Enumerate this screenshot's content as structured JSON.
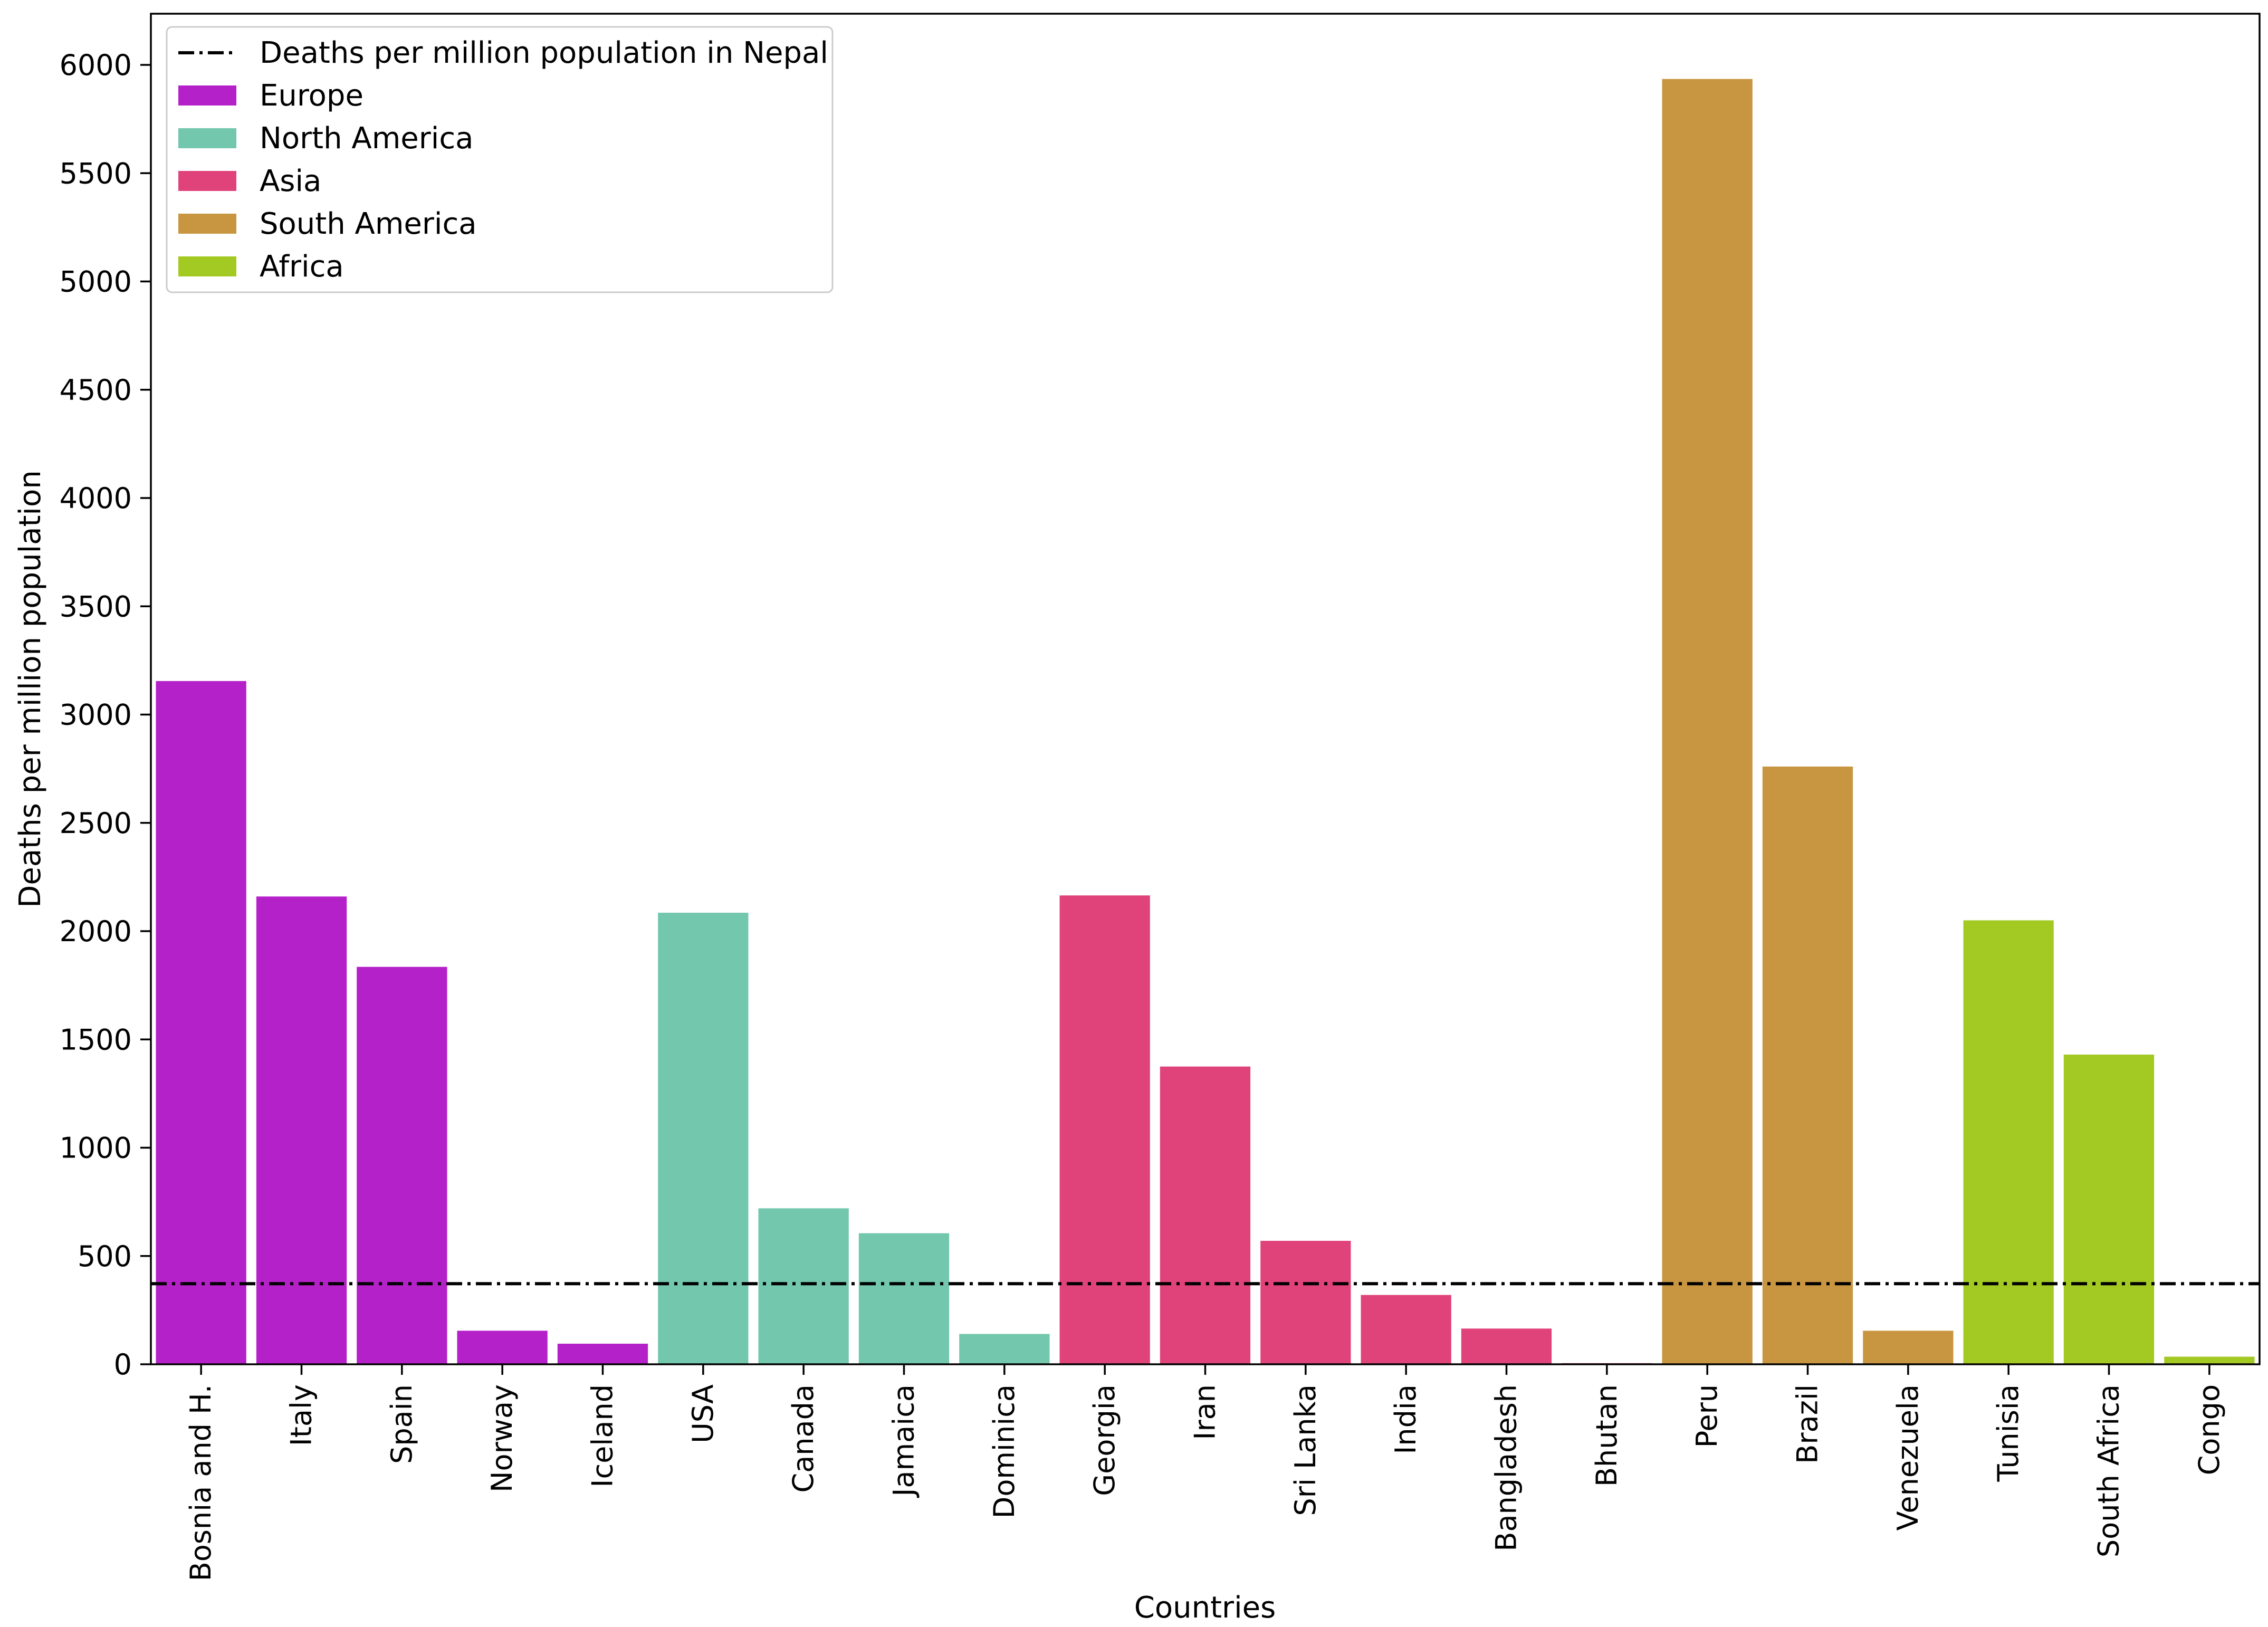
{
  "chart_data": {
    "type": "bar",
    "title": "",
    "xlabel": "Countries",
    "ylabel": "Deaths per million population",
    "ylim": [
      0,
      6300
    ],
    "yticks": [
      0,
      500,
      1000,
      1500,
      2000,
      2500,
      3000,
      3500,
      4000,
      4500,
      5000,
      5500,
      6000
    ],
    "grid": false,
    "legend_position": "top-left",
    "reference_line": {
      "label": "Deaths per million population in Nepal",
      "value": 372,
      "color": "#000000",
      "style": "dash-dot"
    },
    "groups": [
      {
        "name": "Europe",
        "color": "#b521c9"
      },
      {
        "name": "North America",
        "color": "#72c7ad"
      },
      {
        "name": "Asia",
        "color": "#e0437a"
      },
      {
        "name": "South America",
        "color": "#c89640"
      },
      {
        "name": "Africa",
        "color": "#a3c923"
      }
    ],
    "categories": [
      "Bosnia and H.",
      "Italy",
      "Spain",
      "Norway",
      "Iceland",
      "USA",
      "Canada",
      "Jamaica",
      "Dominica",
      "Georgia",
      "Iran",
      "Sri Lanka",
      "India",
      "Bangladesh",
      "Bhutan",
      "Peru",
      "Brazil",
      "Venezuela",
      "Tunisia",
      "South Africa",
      "Congo"
    ],
    "values": [
      3155,
      2160,
      1835,
      155,
      95,
      2085,
      720,
      605,
      140,
      2165,
      1375,
      570,
      320,
      165,
      5,
      5935,
      2760,
      155,
      2050,
      1430,
      35
    ],
    "category_groups": [
      "Europe",
      "Europe",
      "Europe",
      "Europe",
      "Europe",
      "North America",
      "North America",
      "North America",
      "North America",
      "Asia",
      "Asia",
      "Asia",
      "Asia",
      "Asia",
      "Asia",
      "South America",
      "South America",
      "South America",
      "Africa",
      "Africa",
      "Africa"
    ]
  }
}
